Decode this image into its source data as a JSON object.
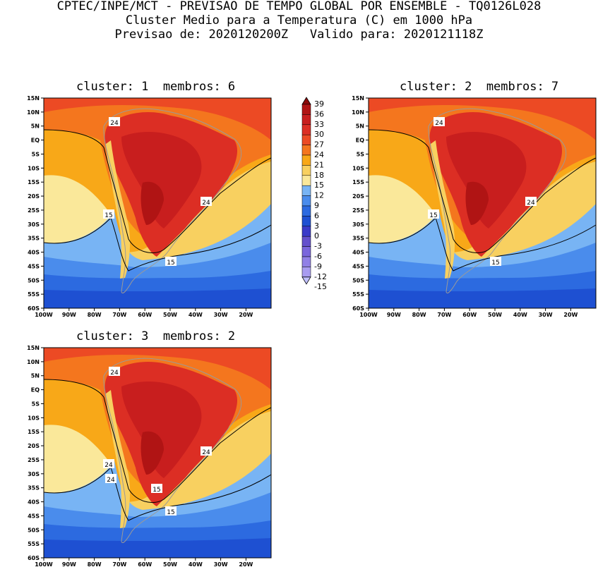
{
  "header": {
    "line1": "CPTEC/INPE/MCT - PREVISAO DE TEMPO GLOBAL POR ENSEMBLE - TQ0126L028",
    "line2": "Cluster Medio para a Temperatura (C) em 1000 hPa",
    "line3": "Previsao de: 2020120200Z   Valido para: 2020121118Z"
  },
  "panels": [
    {
      "title": "cluster: 1  membros: 6",
      "labels": [
        "24",
        "24",
        "15",
        "15"
      ]
    },
    {
      "title": "cluster: 2  membros: 7",
      "labels": [
        "24",
        "24",
        "15",
        "15"
      ]
    },
    {
      "title": "cluster: 3  membros: 2",
      "labels": [
        "24",
        "24",
        "24",
        "15",
        "24",
        "15"
      ]
    }
  ],
  "lat_ticks": [
    "15N",
    "10N",
    "5N",
    "EQ",
    "5S",
    "10S",
    "15S",
    "20S",
    "25S",
    "30S",
    "35S",
    "40S",
    "45S",
    "50S",
    "55S",
    "60S"
  ],
  "lon_ticks": [
    "100W",
    "90W",
    "80W",
    "70W",
    "60W",
    "50W",
    "40W",
    "30W",
    "20W"
  ],
  "colorbar": {
    "levels": [
      "39",
      "36",
      "33",
      "30",
      "27",
      "24",
      "21",
      "18",
      "15",
      "12",
      "9",
      "6",
      "3",
      "0",
      "-3",
      "-6",
      "-9",
      "-12",
      "-15"
    ],
    "colors": [
      "#c0c0ff",
      "#a89cf0",
      "#9180e6",
      "#7a66dc",
      "#6450cc",
      "#3a3ac8",
      "#1e50d2",
      "#2c6ae0",
      "#4a8cec",
      "#78b4f4",
      "#fae89a",
      "#f8d060",
      "#f8a818",
      "#f4761e",
      "#ec4a24",
      "#dc2e24",
      "#c81e1e",
      "#b01414",
      "#8c0a0a"
    ]
  }
}
